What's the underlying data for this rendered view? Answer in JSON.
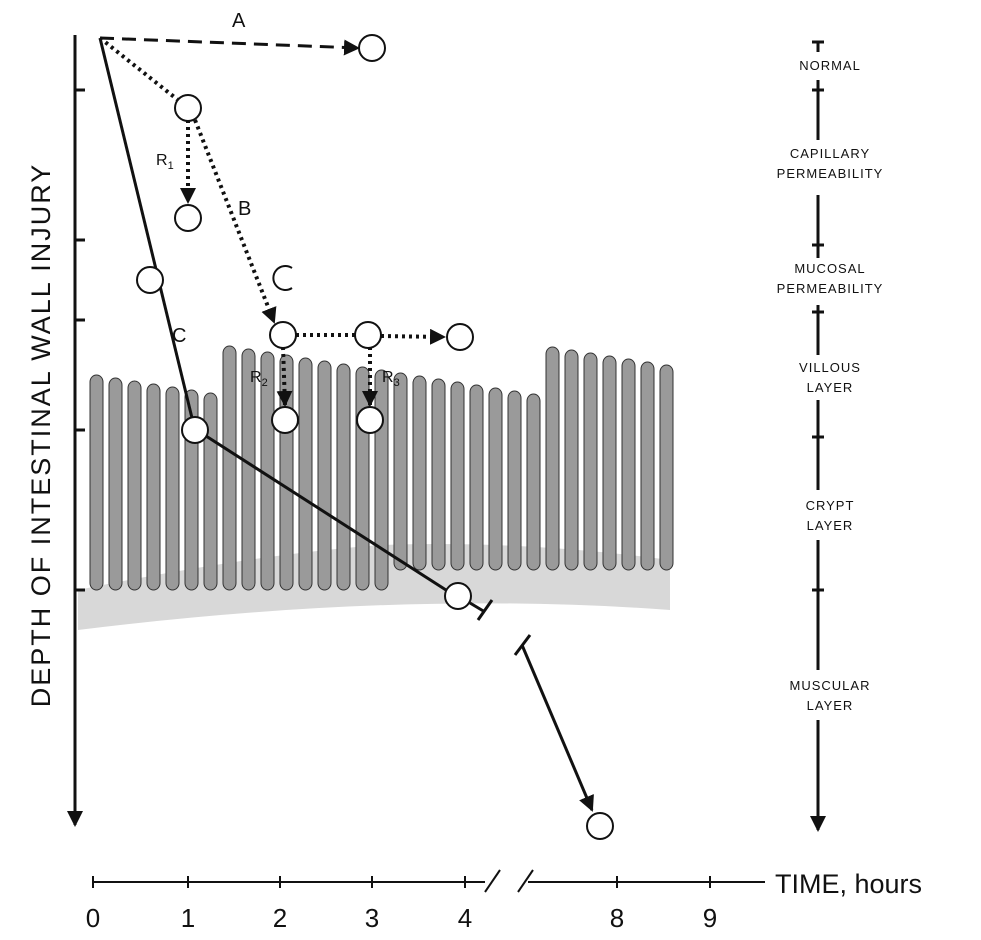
{
  "y_axis_label": "DEPTH OF INTESTINAL WALL INJURY",
  "x_axis_label": "TIME, hours",
  "time_ticks": [
    "0",
    "1",
    "2",
    "3",
    "4",
    "8",
    "9"
  ],
  "paths": [
    {
      "label": "A"
    },
    {
      "label": "B"
    },
    {
      "label": "C"
    }
  ],
  "recovery": [
    {
      "base": "R",
      "sub": "1"
    },
    {
      "base": "R",
      "sub": "2"
    },
    {
      "base": "R",
      "sub": "3"
    }
  ],
  "layers": [
    {
      "lines": [
        "NORMAL"
      ]
    },
    {
      "lines": [
        "CAPILLARY",
        "PERMEABILITY"
      ]
    },
    {
      "lines": [
        "MUCOSAL",
        "PERMEABILITY"
      ]
    },
    {
      "lines": [
        "VILLOUS",
        "LAYER"
      ]
    },
    {
      "lines": [
        "CRYPT",
        "LAYER"
      ]
    },
    {
      "lines": [
        "MUSCULAR",
        "LAYER"
      ]
    }
  ]
}
